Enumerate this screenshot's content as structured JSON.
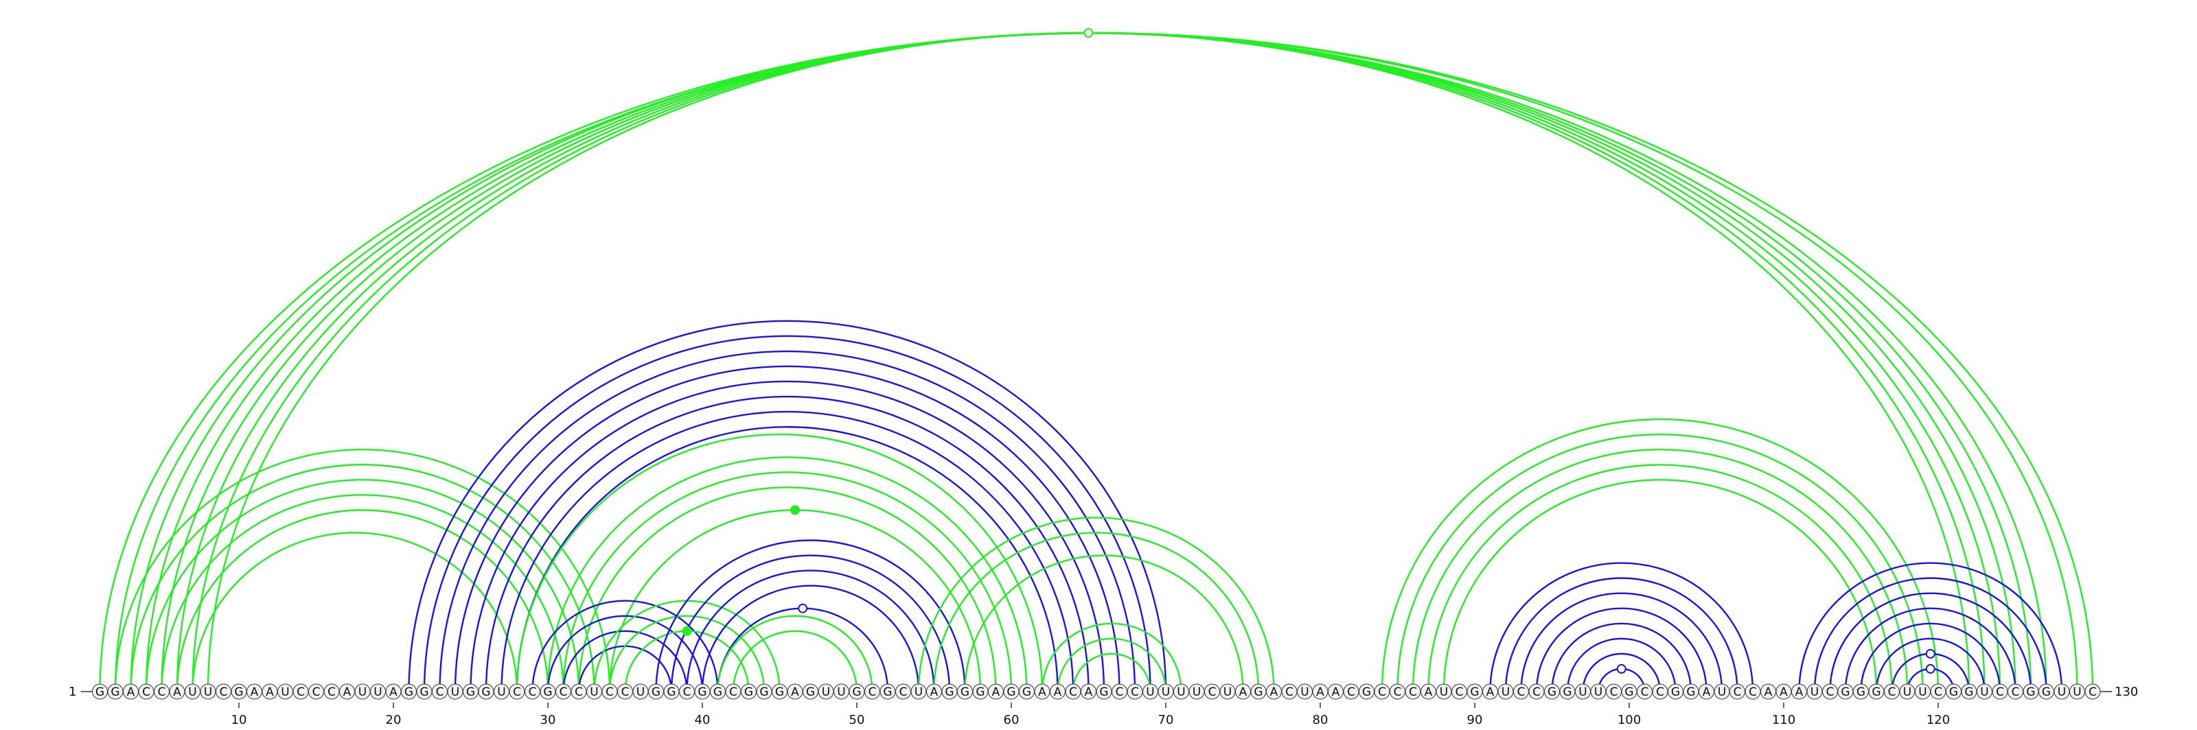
{
  "sequence": "GGACCAUUCGAAUCCCAUUAGGCUGGUCCGCCUCCUGGCGGCGGGAGUUGCGCUAGGGAGGAACAGCCUUUUCUAGACUAACGCCCAUCGAUCCGGUUCGCCGGAUCCAAAUCGGGCUUCGGUCCGGUUC",
  "start_label": "1",
  "end_label": "130",
  "ticks": [
    10,
    20,
    30,
    40,
    50,
    60,
    70,
    80,
    90,
    100,
    110,
    120
  ],
  "colors": {
    "structure_a": "#1a12e6",
    "structure_b": "#22ee22",
    "base_fill": "#f2f2f2",
    "base_stroke": "#333333"
  },
  "arc_groups": [
    {
      "color": "#22ee22",
      "pairs": [
        [
          1,
          130
        ],
        [
          2,
          129
        ],
        [
          3,
          127
        ],
        [
          4,
          126
        ],
        [
          5,
          125
        ],
        [
          6,
          124
        ],
        [
          7,
          123
        ],
        [
          8,
          122
        ]
      ],
      "marker": "open"
    },
    {
      "color": "#22ee22",
      "pairs": [
        [
          2,
          34
        ],
        [
          3,
          33
        ],
        [
          4,
          32
        ],
        [
          5,
          31
        ],
        [
          6,
          30
        ],
        [
          7,
          28
        ]
      ]
    },
    {
      "color": "#1a12e6",
      "pairs": [
        [
          21,
          70
        ],
        [
          22,
          69
        ],
        [
          23,
          68
        ],
        [
          24,
          67
        ],
        [
          25,
          66
        ],
        [
          26,
          65
        ],
        [
          27,
          64
        ],
        [
          28,
          63
        ]
      ]
    },
    {
      "color": "#22ee22",
      "pairs": [
        [
          28,
          62
        ],
        [
          30,
          61
        ],
        [
          31,
          60
        ],
        [
          32,
          59
        ],
        [
          34,
          58
        ]
      ],
      "marker": "filled"
    },
    {
      "color": "#1a12e6",
      "pairs": [
        [
          29,
          41
        ],
        [
          30,
          40
        ],
        [
          31,
          39
        ],
        [
          32,
          38
        ]
      ]
    },
    {
      "color": "#22ee22",
      "pairs": [
        [
          33,
          45
        ],
        [
          34,
          44
        ],
        [
          35,
          43
        ]
      ],
      "marker": "filled"
    },
    {
      "color": "#1a12e6",
      "pairs": [
        [
          37,
          57
        ],
        [
          38,
          56
        ],
        [
          39,
          55
        ],
        [
          40,
          54
        ],
        [
          41,
          52
        ]
      ],
      "marker": "open"
    },
    {
      "color": "#22ee22",
      "pairs": [
        [
          41,
          51
        ],
        [
          42,
          50
        ]
      ]
    },
    {
      "color": "#22ee22",
      "pairs": [
        [
          54,
          77
        ],
        [
          55,
          76
        ],
        [
          57,
          75
        ]
      ]
    },
    {
      "color": "#22ee22",
      "pairs": [
        [
          62,
          71
        ],
        [
          63,
          70
        ],
        [
          64,
          69
        ]
      ]
    },
    {
      "color": "#22ee22",
      "pairs": [
        [
          84,
          120
        ],
        [
          85,
          119
        ],
        [
          86,
          118
        ],
        [
          87,
          117
        ],
        [
          88,
          116
        ]
      ]
    },
    {
      "color": "#1a12e6",
      "pairs": [
        [
          91,
          108
        ],
        [
          92,
          107
        ],
        [
          93,
          106
        ],
        [
          94,
          105
        ],
        [
          95,
          104
        ],
        [
          96,
          103
        ],
        [
          97,
          102
        ],
        [
          98,
          101
        ]
      ],
      "marker": "open"
    },
    {
      "color": "#1a12e6",
      "pairs": [
        [
          111,
          128
        ],
        [
          112,
          127
        ],
        [
          113,
          126
        ],
        [
          114,
          125
        ],
        [
          115,
          124
        ],
        [
          116,
          123
        ],
        [
          117,
          122
        ]
      ],
      "marker": "open"
    },
    {
      "color": "#1a12e6",
      "pairs": [
        [
          118,
          121
        ]
      ],
      "marker": "open"
    }
  ]
}
